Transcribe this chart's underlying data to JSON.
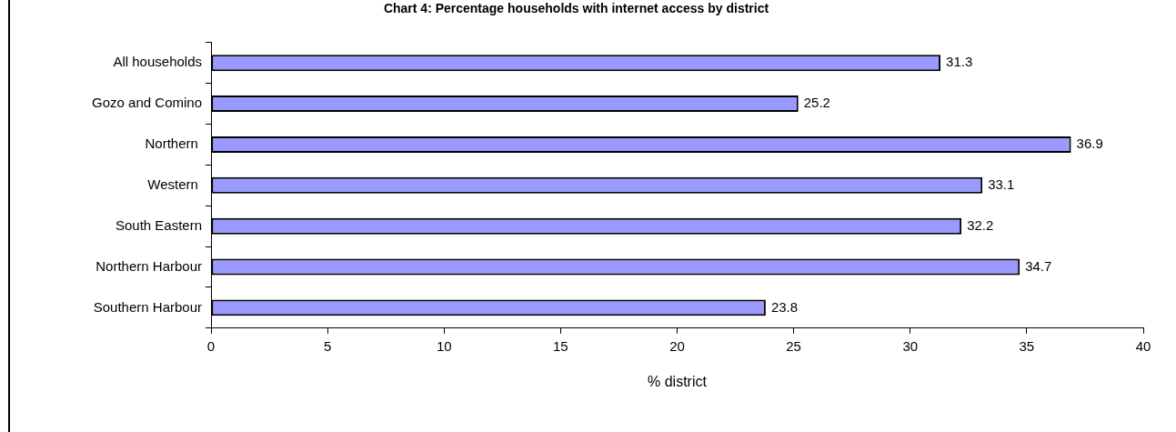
{
  "chart_data": {
    "type": "bar",
    "orientation": "horizontal",
    "title": "Chart 4: Percentage households with internet access by district",
    "xlabel": "% district",
    "categories": [
      "All households",
      "Gozo and Comino",
      "Northern ",
      "Western ",
      "South Eastern",
      "Northern Harbour",
      "Southern Harbour"
    ],
    "values": [
      31.3,
      25.2,
      36.9,
      33.1,
      32.2,
      34.7,
      23.8
    ],
    "color": "#9999ff",
    "xlim": [
      0,
      40
    ],
    "xticks": [
      0,
      5,
      10,
      15,
      20,
      25,
      30,
      35,
      40
    ],
    "grid": false,
    "legend": false,
    "data_labels": true
  }
}
